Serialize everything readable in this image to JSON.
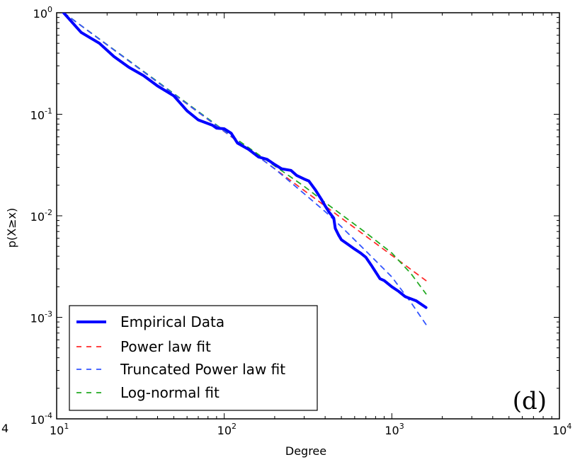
{
  "chart_data": {
    "type": "line",
    "panel_label": "(d)",
    "xlabel": "Degree",
    "ylabel": "p(X≥x)",
    "xscale": "log",
    "yscale": "log",
    "xlim": [
      10,
      10000
    ],
    "ylim": [
      0.0001,
      1
    ],
    "x_ticks": [
      {
        "base": "10",
        "exp": "1",
        "value": 10
      },
      {
        "base": "10",
        "exp": "2",
        "value": 100
      },
      {
        "base": "10",
        "exp": "3",
        "value": 1000
      },
      {
        "base": "10",
        "exp": "4",
        "value": 10000
      }
    ],
    "y_ticks": [
      {
        "base": "10",
        "exp": "0",
        "value": 1
      },
      {
        "base": "10",
        "exp": "-1",
        "value": 0.1
      },
      {
        "base": "10",
        "exp": "-2",
        "value": 0.01
      },
      {
        "base": "10",
        "exp": "-3",
        "value": 0.001
      },
      {
        "base": "10",
        "exp": "-4",
        "value": 0.0001
      }
    ],
    "clipped_left_label": "4",
    "grid": false,
    "legend_position": "lower-left",
    "series": [
      {
        "name": "Empirical Data",
        "color": "#0000ff",
        "style": "solid",
        "x": [
          11,
          14,
          18,
          22,
          27,
          33,
          40,
          50,
          60,
          70,
          85,
          90,
          100,
          110,
          120,
          140,
          160,
          180,
          200,
          220,
          250,
          270,
          300,
          320,
          350,
          380,
          400,
          420,
          450,
          460,
          480,
          500,
          550,
          600,
          650,
          700,
          750,
          800,
          850,
          900,
          1000,
          1100,
          1200,
          1400,
          1600
        ],
        "y": [
          1.0,
          0.64,
          0.5,
          0.37,
          0.29,
          0.24,
          0.19,
          0.152,
          0.108,
          0.088,
          0.078,
          0.073,
          0.072,
          0.065,
          0.052,
          0.045,
          0.038,
          0.036,
          0.032,
          0.029,
          0.028,
          0.025,
          0.023,
          0.022,
          0.018,
          0.0145,
          0.0125,
          0.011,
          0.0095,
          0.0075,
          0.0065,
          0.0058,
          0.0052,
          0.0047,
          0.0043,
          0.0039,
          0.0033,
          0.0028,
          0.0024,
          0.0023,
          0.002,
          0.0018,
          0.0016,
          0.00145,
          0.00125
        ]
      },
      {
        "name": "Power law fit",
        "color": "#ff2a2a",
        "style": "dashed",
        "x": [
          11,
          1600
        ],
        "y": [
          1.0,
          0.0023
        ]
      },
      {
        "name": "Truncated Power law fit",
        "color": "#3355ff",
        "style": "dashed",
        "x": [
          11,
          50,
          100,
          200,
          300,
          400,
          500,
          700,
          1000,
          1300,
          1600
        ],
        "y": [
          1.0,
          0.158,
          0.068,
          0.029,
          0.0165,
          0.011,
          0.0078,
          0.0045,
          0.0025,
          0.0014,
          0.00085
        ]
      },
      {
        "name": "Log-normal fit",
        "color": "#22aa22",
        "style": "dashed",
        "x": [
          11,
          50,
          100,
          200,
          300,
          400,
          500,
          700,
          1000,
          1300,
          1600
        ],
        "y": [
          1.0,
          0.16,
          0.069,
          0.031,
          0.0195,
          0.0135,
          0.0103,
          0.0068,
          0.0043,
          0.0027,
          0.0017
        ]
      }
    ]
  }
}
